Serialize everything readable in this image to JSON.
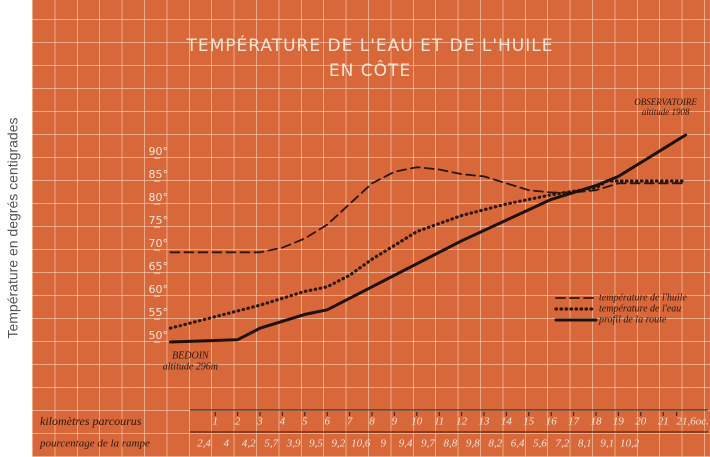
{
  "chart_data": {
    "type": "line",
    "title": [
      "TEMPÉRATURE DE L'EAU ET DE L'HUILE",
      "EN CÔTE"
    ],
    "ylabel": "Température en degrés centigrades",
    "xlim": [
      -2,
      23
    ],
    "ylim": [
      40,
      100
    ],
    "yticks": [
      {
        "value": 50,
        "label": "50°"
      },
      {
        "value": 55,
        "label": "55°"
      },
      {
        "value": 60,
        "label": "60°"
      },
      {
        "value": 65,
        "label": "65°"
      },
      {
        "value": 70,
        "label": "70°"
      },
      {
        "value": 75,
        "label": "75°"
      },
      {
        "value": 80,
        "label": "80°"
      },
      {
        "value": 85,
        "label": "85°"
      },
      {
        "value": 90,
        "label": "90°"
      }
    ],
    "xticks": [
      1,
      2,
      3,
      4,
      5,
      6,
      7,
      8,
      9,
      10,
      11,
      12,
      13,
      14,
      15,
      16,
      17,
      18,
      19,
      20,
      21,
      {
        "value": 21.6,
        "label": "21,6oc."
      }
    ],
    "xlabel": "kilomètres parcourus",
    "grade_label": "pourcentage de la rampe",
    "grades": [
      "2,4",
      "4",
      "4,2",
      "5,7",
      "3,9",
      "9,5",
      "9,2",
      "10,6",
      "9",
      "9,4",
      "9,7",
      "8,8",
      "9,8",
      "8,2",
      "6,4",
      "5,6",
      "7,2",
      "8,1",
      "9,1",
      "10,2"
    ],
    "legend": "right",
    "series": [
      {
        "name": "température de l'huile",
        "style": "dashed",
        "color": "#2b1710",
        "x": [
          -1,
          3,
          4,
          5,
          6,
          7,
          8,
          9,
          10,
          11,
          12,
          13,
          14,
          15,
          16,
          17,
          18,
          19,
          22
        ],
        "values": [
          69.5,
          69.5,
          70.5,
          72.5,
          75.5,
          80,
          84.5,
          87,
          88,
          87.5,
          86.5,
          86,
          84.5,
          83,
          82.5,
          82.5,
          83,
          84.5,
          84.5
        ]
      },
      {
        "name": "température de l'eau",
        "style": "dotted",
        "color": "#2b1710",
        "x": [
          -1,
          1,
          3,
          5,
          6,
          7,
          8,
          9,
          10,
          12,
          14,
          16,
          18,
          18.5,
          22
        ],
        "values": [
          53,
          55.5,
          58,
          61,
          62,
          64.5,
          68,
          71,
          74,
          77.5,
          80,
          82,
          83.5,
          85,
          85
        ]
      },
      {
        "name": "profil de la route",
        "style": "solid",
        "color": "#1e100b",
        "x": [
          -1,
          2,
          3,
          5,
          6,
          7,
          8,
          10,
          12,
          14,
          16,
          18,
          19,
          20,
          21,
          22
        ],
        "values": [
          50,
          50.5,
          53,
          56,
          57,
          59.5,
          62,
          67,
          72,
          76.5,
          81,
          84,
          86,
          89,
          92,
          95
        ]
      }
    ],
    "annotations": {
      "start": [
        "BEDOIN",
        "altitude 296m"
      ],
      "end": [
        "OBSERVATOIRE",
        "altitude 1908"
      ]
    }
  }
}
